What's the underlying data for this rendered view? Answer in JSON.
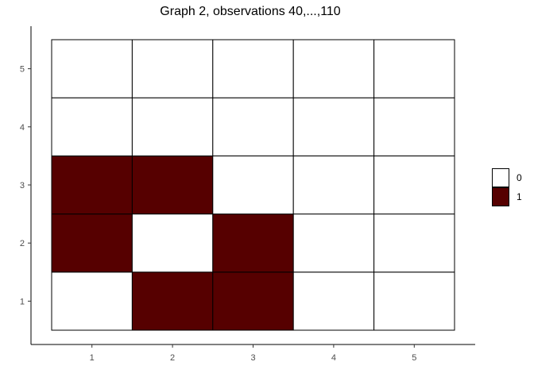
{
  "chart_data": {
    "type": "heatmap",
    "title": "Graph 2, observations 40,...,110",
    "xlabel": "",
    "ylabel": "",
    "x_categories": [
      "1",
      "2",
      "3",
      "4",
      "5"
    ],
    "y_categories": [
      "1",
      "2",
      "3",
      "4",
      "5"
    ],
    "cells": [
      {
        "x": 1,
        "y": 1,
        "value": 0
      },
      {
        "x": 2,
        "y": 1,
        "value": 1
      },
      {
        "x": 3,
        "y": 1,
        "value": 1
      },
      {
        "x": 4,
        "y": 1,
        "value": 0
      },
      {
        "x": 5,
        "y": 1,
        "value": 0
      },
      {
        "x": 1,
        "y": 2,
        "value": 1
      },
      {
        "x": 2,
        "y": 2,
        "value": 0
      },
      {
        "x": 3,
        "y": 2,
        "value": 1
      },
      {
        "x": 4,
        "y": 2,
        "value": 0
      },
      {
        "x": 5,
        "y": 2,
        "value": 0
      },
      {
        "x": 1,
        "y": 3,
        "value": 1
      },
      {
        "x": 2,
        "y": 3,
        "value": 1
      },
      {
        "x": 3,
        "y": 3,
        "value": 0
      },
      {
        "x": 4,
        "y": 3,
        "value": 0
      },
      {
        "x": 5,
        "y": 3,
        "value": 0
      },
      {
        "x": 1,
        "y": 4,
        "value": 0
      },
      {
        "x": 2,
        "y": 4,
        "value": 0
      },
      {
        "x": 3,
        "y": 4,
        "value": 0
      },
      {
        "x": 4,
        "y": 4,
        "value": 0
      },
      {
        "x": 5,
        "y": 4,
        "value": 0
      },
      {
        "x": 1,
        "y": 5,
        "value": 0
      },
      {
        "x": 2,
        "y": 5,
        "value": 0
      },
      {
        "x": 3,
        "y": 5,
        "value": 0
      },
      {
        "x": 4,
        "y": 5,
        "value": 0
      },
      {
        "x": 5,
        "y": 5,
        "value": 0
      }
    ],
    "legend": {
      "placement": "right",
      "entries": [
        {
          "label": "0",
          "color": "#ffffff"
        },
        {
          "label": "1",
          "color": "#560000"
        }
      ]
    },
    "grid": false
  }
}
